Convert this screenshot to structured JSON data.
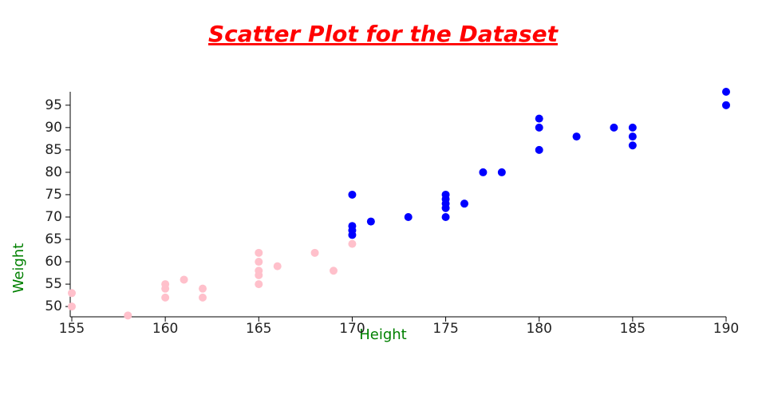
{
  "chart_data": {
    "type": "scatter",
    "title": "Scatter Plot for the Dataset",
    "x_label": "Height",
    "y_label": "Weight",
    "series": [
      {
        "color": "pink",
        "x": [
          155,
          155,
          158,
          160,
          160,
          160,
          161,
          162,
          162,
          165,
          165,
          165,
          165,
          165,
          166,
          168,
          169,
          170
        ],
        "values": [
          53,
          50,
          48,
          55,
          54,
          52,
          56,
          54,
          52,
          62,
          60,
          58,
          57,
          55,
          59,
          62,
          58,
          64
        ]
      },
      {
        "color": "blue",
        "x": [
          170,
          170,
          170,
          170,
          171,
          173,
          175,
          175,
          175,
          175,
          175,
          176,
          177,
          178,
          180,
          180,
          180,
          182,
          184,
          185,
          185,
          185,
          190,
          190
        ],
        "values": [
          75,
          68,
          67,
          66,
          69,
          70,
          75,
          74,
          73,
          72,
          70,
          73,
          80,
          80,
          92,
          90,
          85,
          88,
          90,
          90,
          88,
          86,
          98,
          95
        ]
      }
    ],
    "xlim": [
      155,
      190
    ],
    "xticks": [
      155,
      160,
      165,
      170,
      175,
      180,
      185,
      190
    ],
    "ylim": [
      47.7,
      98
    ],
    "yticks": [
      50,
      55,
      60,
      65,
      70,
      75,
      80,
      85,
      90,
      95
    ]
  }
}
